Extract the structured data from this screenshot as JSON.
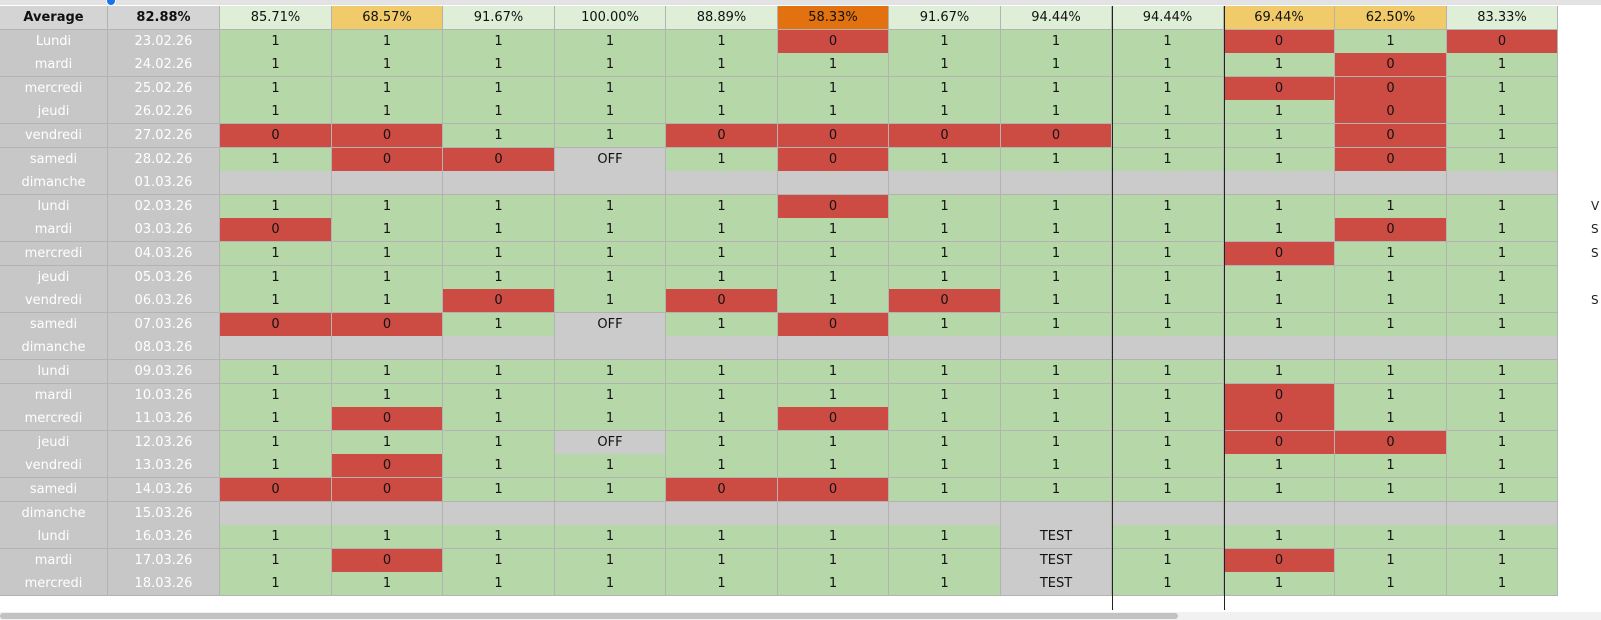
{
  "header": {
    "label": "Average",
    "overall": "82.88%",
    "columns": [
      {
        "value": "85.71%",
        "tone": "h"
      },
      {
        "value": "68.57%",
        "tone": "y"
      },
      {
        "value": "91.67%",
        "tone": "h"
      },
      {
        "value": "100.00%",
        "tone": "h"
      },
      {
        "value": "88.89%",
        "tone": "h"
      },
      {
        "value": "58.33%",
        "tone": "o"
      },
      {
        "value": "91.67%",
        "tone": "h"
      },
      {
        "value": "94.44%",
        "tone": "h"
      },
      {
        "value": "94.44%",
        "tone": "h"
      },
      {
        "value": "69.44%",
        "tone": "y"
      },
      {
        "value": "62.50%",
        "tone": "y"
      },
      {
        "value": "83.33%",
        "tone": "h"
      }
    ]
  },
  "rows": [
    {
      "day": "Lundi",
      "date": "23.02.26",
      "cells": [
        "1",
        "1",
        "1",
        "1",
        "1",
        "0",
        "1",
        "1",
        "1",
        "0",
        "1",
        "0"
      ]
    },
    {
      "day": "mardi",
      "date": "24.02.26",
      "cells": [
        "1",
        "1",
        "1",
        "1",
        "1",
        "1",
        "1",
        "1",
        "1",
        "1",
        "0",
        "1"
      ]
    },
    {
      "day": "mercredi",
      "date": "25.02.26",
      "cells": [
        "1",
        "1",
        "1",
        "1",
        "1",
        "1",
        "1",
        "1",
        "1",
        "0",
        "0",
        "1"
      ]
    },
    {
      "day": "jeudi",
      "date": "26.02.26",
      "cells": [
        "1",
        "1",
        "1",
        "1",
        "1",
        "1",
        "1",
        "1",
        "1",
        "1",
        "0",
        "1"
      ]
    },
    {
      "day": "vendredi",
      "date": "27.02.26",
      "cells": [
        "0",
        "0",
        "1",
        "1",
        "0",
        "0",
        "0",
        "0",
        "1",
        "1",
        "0",
        "1"
      ]
    },
    {
      "day": "samedi",
      "date": "28.02.26",
      "cells": [
        "1",
        "0",
        "0",
        "OFF",
        "1",
        "0",
        "1",
        "1",
        "1",
        "1",
        "0",
        "1"
      ]
    },
    {
      "day": "dimanche",
      "date": "01.03.26",
      "cells": [
        "",
        "",
        "",
        "",
        "",
        "",
        "",
        "",
        "",
        "",
        "",
        ""
      ]
    },
    {
      "day": "lundi",
      "date": "02.03.26",
      "cells": [
        "1",
        "1",
        "1",
        "1",
        "1",
        "0",
        "1",
        "1",
        "1",
        "1",
        "1",
        "1"
      ],
      "extra": "V"
    },
    {
      "day": "mardi",
      "date": "03.03.26",
      "cells": [
        "0",
        "1",
        "1",
        "1",
        "1",
        "1",
        "1",
        "1",
        "1",
        "1",
        "0",
        "1"
      ],
      "extra": "S"
    },
    {
      "day": "mercredi",
      "date": "04.03.26",
      "cells": [
        "1",
        "1",
        "1",
        "1",
        "1",
        "1",
        "1",
        "1",
        "1",
        "0",
        "1",
        "1"
      ],
      "extra": "S"
    },
    {
      "day": "jeudi",
      "date": "05.03.26",
      "cells": [
        "1",
        "1",
        "1",
        "1",
        "1",
        "1",
        "1",
        "1",
        "1",
        "1",
        "1",
        "1"
      ]
    },
    {
      "day": "vendredi",
      "date": "06.03.26",
      "cells": [
        "1",
        "1",
        "0",
        "1",
        "0",
        "1",
        "0",
        "1",
        "1",
        "1",
        "1",
        "1"
      ],
      "extra": "S"
    },
    {
      "day": "samedi",
      "date": "07.03.26",
      "cells": [
        "0",
        "0",
        "1",
        "OFF",
        "1",
        "0",
        "1",
        "1",
        "1",
        "1",
        "1",
        "1"
      ]
    },
    {
      "day": "dimanche",
      "date": "08.03.26",
      "cells": [
        "",
        "",
        "",
        "",
        "",
        "",
        "",
        "",
        "",
        "",
        "",
        ""
      ]
    },
    {
      "day": "lundi",
      "date": "09.03.26",
      "cells": [
        "1",
        "1",
        "1",
        "1",
        "1",
        "1",
        "1",
        "1",
        "1",
        "1",
        "1",
        "1"
      ]
    },
    {
      "day": "mardi",
      "date": "10.03.26",
      "cells": [
        "1",
        "1",
        "1",
        "1",
        "1",
        "1",
        "1",
        "1",
        "1",
        "0",
        "1",
        "1"
      ]
    },
    {
      "day": "mercredi",
      "date": "11.03.26",
      "cells": [
        "1",
        "0",
        "1",
        "1",
        "1",
        "0",
        "1",
        "1",
        "1",
        "0",
        "1",
        "1"
      ]
    },
    {
      "day": "jeudi",
      "date": "12.03.26",
      "cells": [
        "1",
        "1",
        "1",
        "OFF",
        "1",
        "1",
        "1",
        "1",
        "1",
        "0",
        "0",
        "1"
      ]
    },
    {
      "day": "vendredi",
      "date": "13.03.26",
      "cells": [
        "1",
        "0",
        "1",
        "1",
        "1",
        "1",
        "1",
        "1",
        "1",
        "1",
        "1",
        "1"
      ]
    },
    {
      "day": "samedi",
      "date": "14.03.26",
      "cells": [
        "0",
        "0",
        "1",
        "1",
        "0",
        "0",
        "1",
        "1",
        "1",
        "1",
        "1",
        "1"
      ]
    },
    {
      "day": "dimanche",
      "date": "15.03.26",
      "cells": [
        "",
        "",
        "",
        "",
        "",
        "",
        "",
        "",
        "",
        "",
        "",
        ""
      ]
    },
    {
      "day": "lundi",
      "date": "16.03.26",
      "cells": [
        "1",
        "1",
        "1",
        "1",
        "1",
        "1",
        "1",
        "TEST",
        "1",
        "1",
        "1",
        "1"
      ]
    },
    {
      "day": "mardi",
      "date": "17.03.26",
      "cells": [
        "1",
        "0",
        "1",
        "1",
        "1",
        "1",
        "1",
        "TEST",
        "1",
        "0",
        "1",
        "1"
      ]
    },
    {
      "day": "mercredi",
      "date": "18.03.26",
      "cells": [
        "1",
        "1",
        "1",
        "1",
        "1",
        "1",
        "1",
        "TEST",
        "1",
        "1",
        "1",
        "1"
      ]
    }
  ],
  "colors": {
    "present": "#b6d7a8",
    "absent": "#cc4c44",
    "off": "#cbcbcb",
    "warning": "#f1cb69",
    "alert": "#e2720f"
  }
}
